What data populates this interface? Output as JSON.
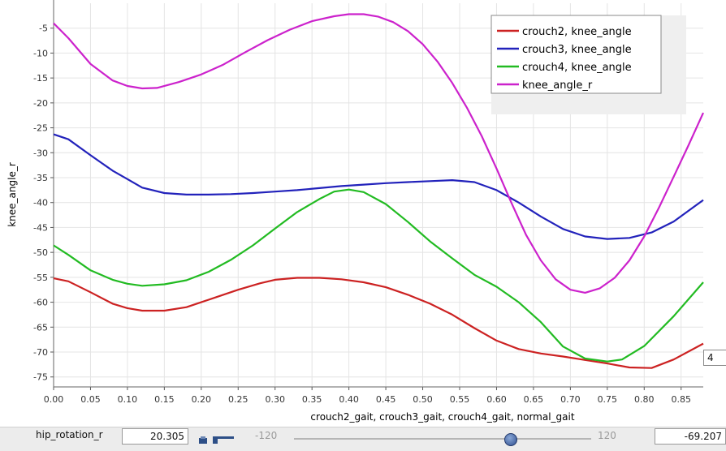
{
  "chart_data": {
    "type": "line",
    "title": "",
    "xlabel": "crouch2_gait, crouch3_gait, crouch4_gait, normal_gait",
    "ylabel": "knee_angle_r",
    "xlim": [
      0,
      0.88
    ],
    "ylim": [
      -77,
      0
    ],
    "x_ticks": [
      "0.00",
      "0.05",
      "0.10",
      "0.15",
      "0.20",
      "0.25",
      "0.30",
      "0.35",
      "0.40",
      "0.45",
      "0.50",
      "0.55",
      "0.60",
      "0.65",
      "0.70",
      "0.75",
      "0.80",
      "0.85"
    ],
    "y_ticks": [
      "-5",
      "-10",
      "-15",
      "-20",
      "-25",
      "-30",
      "-35",
      "-40",
      "-45",
      "-50",
      "-55",
      "-60",
      "-65",
      "-70",
      "-75"
    ],
    "grid": true,
    "legend_position": "top-right",
    "series": [
      {
        "name": "crouch2, knee_angle",
        "color": "#cc2222",
        "points": [
          [
            0.0,
            -55.2
          ],
          [
            0.02,
            -55.8
          ],
          [
            0.05,
            -58.0
          ],
          [
            0.08,
            -60.3
          ],
          [
            0.1,
            -61.2
          ],
          [
            0.12,
            -61.7
          ],
          [
            0.15,
            -61.7
          ],
          [
            0.18,
            -61.0
          ],
          [
            0.2,
            -60.0
          ],
          [
            0.22,
            -59.0
          ],
          [
            0.25,
            -57.5
          ],
          [
            0.28,
            -56.2
          ],
          [
            0.3,
            -55.5
          ],
          [
            0.33,
            -55.1
          ],
          [
            0.36,
            -55.1
          ],
          [
            0.39,
            -55.4
          ],
          [
            0.42,
            -56.0
          ],
          [
            0.45,
            -57.0
          ],
          [
            0.48,
            -58.5
          ],
          [
            0.51,
            -60.3
          ],
          [
            0.54,
            -62.5
          ],
          [
            0.57,
            -65.2
          ],
          [
            0.6,
            -67.7
          ],
          [
            0.63,
            -69.4
          ],
          [
            0.66,
            -70.3
          ],
          [
            0.69,
            -70.9
          ],
          [
            0.72,
            -71.6
          ],
          [
            0.75,
            -72.3
          ],
          [
            0.78,
            -73.1
          ],
          [
            0.81,
            -73.2
          ],
          [
            0.84,
            -71.5
          ],
          [
            0.88,
            -68.3
          ]
        ]
      },
      {
        "name": "crouch3, knee_angle",
        "color": "#2222bb",
        "points": [
          [
            0.0,
            -26.3
          ],
          [
            0.02,
            -27.3
          ],
          [
            0.05,
            -30.5
          ],
          [
            0.08,
            -33.6
          ],
          [
            0.1,
            -35.3
          ],
          [
            0.12,
            -37.0
          ],
          [
            0.15,
            -38.1
          ],
          [
            0.18,
            -38.4
          ],
          [
            0.21,
            -38.4
          ],
          [
            0.24,
            -38.3
          ],
          [
            0.27,
            -38.1
          ],
          [
            0.3,
            -37.8
          ],
          [
            0.33,
            -37.5
          ],
          [
            0.36,
            -37.1
          ],
          [
            0.39,
            -36.7
          ],
          [
            0.42,
            -36.4
          ],
          [
            0.45,
            -36.1
          ],
          [
            0.48,
            -35.9
          ],
          [
            0.51,
            -35.7
          ],
          [
            0.54,
            -35.5
          ],
          [
            0.57,
            -35.9
          ],
          [
            0.6,
            -37.5
          ],
          [
            0.63,
            -40.0
          ],
          [
            0.66,
            -42.8
          ],
          [
            0.69,
            -45.3
          ],
          [
            0.72,
            -46.8
          ],
          [
            0.75,
            -47.3
          ],
          [
            0.78,
            -47.1
          ],
          [
            0.81,
            -46.0
          ],
          [
            0.84,
            -43.8
          ],
          [
            0.88,
            -39.5
          ]
        ]
      },
      {
        "name": "crouch4, knee_angle",
        "color": "#22bb22",
        "points": [
          [
            0.0,
            -48.6
          ],
          [
            0.02,
            -50.5
          ],
          [
            0.05,
            -53.6
          ],
          [
            0.08,
            -55.5
          ],
          [
            0.1,
            -56.3
          ],
          [
            0.12,
            -56.7
          ],
          [
            0.15,
            -56.4
          ],
          [
            0.18,
            -55.6
          ],
          [
            0.21,
            -53.9
          ],
          [
            0.24,
            -51.5
          ],
          [
            0.27,
            -48.6
          ],
          [
            0.3,
            -45.2
          ],
          [
            0.33,
            -41.9
          ],
          [
            0.36,
            -39.3
          ],
          [
            0.38,
            -37.8
          ],
          [
            0.4,
            -37.4
          ],
          [
            0.42,
            -37.9
          ],
          [
            0.45,
            -40.3
          ],
          [
            0.48,
            -43.9
          ],
          [
            0.51,
            -47.8
          ],
          [
            0.54,
            -51.2
          ],
          [
            0.57,
            -54.5
          ],
          [
            0.6,
            -56.9
          ],
          [
            0.63,
            -60.0
          ],
          [
            0.66,
            -64.0
          ],
          [
            0.69,
            -68.9
          ],
          [
            0.72,
            -71.3
          ],
          [
            0.75,
            -71.9
          ],
          [
            0.77,
            -71.5
          ],
          [
            0.8,
            -68.8
          ],
          [
            0.84,
            -62.8
          ],
          [
            0.88,
            -56.0
          ]
        ]
      },
      {
        "name": "knee_angle_r",
        "color": "#cc22cc",
        "points": [
          [
            0.0,
            -4.0
          ],
          [
            0.02,
            -7.0
          ],
          [
            0.05,
            -12.2
          ],
          [
            0.08,
            -15.5
          ],
          [
            0.1,
            -16.6
          ],
          [
            0.12,
            -17.1
          ],
          [
            0.14,
            -17.0
          ],
          [
            0.17,
            -15.8
          ],
          [
            0.2,
            -14.3
          ],
          [
            0.23,
            -12.3
          ],
          [
            0.26,
            -9.8
          ],
          [
            0.29,
            -7.4
          ],
          [
            0.32,
            -5.3
          ],
          [
            0.35,
            -3.6
          ],
          [
            0.38,
            -2.6
          ],
          [
            0.4,
            -2.2
          ],
          [
            0.42,
            -2.2
          ],
          [
            0.44,
            -2.7
          ],
          [
            0.46,
            -3.8
          ],
          [
            0.48,
            -5.6
          ],
          [
            0.5,
            -8.2
          ],
          [
            0.52,
            -11.7
          ],
          [
            0.54,
            -16.0
          ],
          [
            0.56,
            -21.0
          ],
          [
            0.58,
            -26.7
          ],
          [
            0.6,
            -33.2
          ],
          [
            0.62,
            -40.0
          ],
          [
            0.64,
            -46.5
          ],
          [
            0.66,
            -51.6
          ],
          [
            0.68,
            -55.4
          ],
          [
            0.7,
            -57.5
          ],
          [
            0.72,
            -58.1
          ],
          [
            0.74,
            -57.2
          ],
          [
            0.76,
            -55.1
          ],
          [
            0.78,
            -51.6
          ],
          [
            0.8,
            -46.8
          ],
          [
            0.82,
            -41.0
          ],
          [
            0.84,
            -34.8
          ],
          [
            0.86,
            -28.5
          ],
          [
            0.88,
            -22.0
          ]
        ]
      }
    ]
  },
  "bottom_bar": {
    "label": "hip_rotation_r",
    "value": "20.305",
    "slider_min": "-120",
    "slider_max": "120",
    "slider_fraction": 0.73,
    "current_value": "-69.207"
  },
  "side_field": {
    "value": "4"
  },
  "colors": {
    "background": "#ffffff",
    "grid": "#e4e4e4",
    "legend_panel": "#efefef"
  }
}
